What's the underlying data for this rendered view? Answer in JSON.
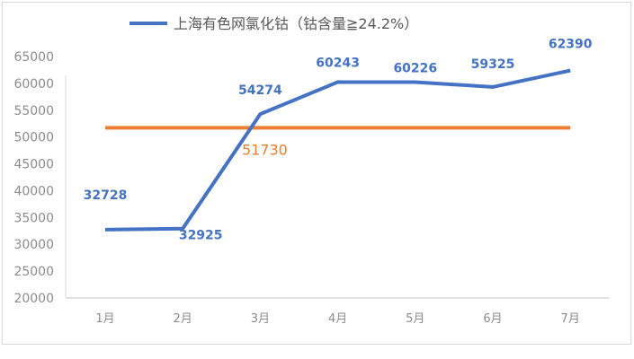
{
  "chart_data": {
    "type": "line",
    "title": "",
    "categories": [
      "1月",
      "2月",
      "3月",
      "4月",
      "5月",
      "6月",
      "7月"
    ],
    "series": [
      {
        "name": "上海有色网氯化钴（钴含量≧24.2%）",
        "values": [
          32728,
          32925,
          54274,
          60243,
          60226,
          59325,
          62390
        ],
        "color": "#4472c4",
        "data_labels": true
      }
    ],
    "reference_line": {
      "value": 51730,
      "label": "51730",
      "color": "#ed7d31"
    },
    "ylim": [
      20000,
      65000
    ],
    "yticks": [
      20000,
      25000,
      30000,
      35000,
      40000,
      45000,
      50000,
      55000,
      60000,
      65000
    ],
    "xlabel": "",
    "ylabel": "",
    "grid": false,
    "drop_lines": true,
    "legend": "top"
  }
}
